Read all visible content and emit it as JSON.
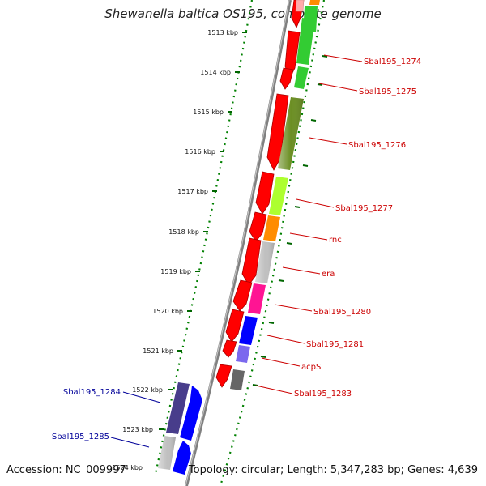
{
  "title": "Shewanella baltica OS195, complete genome",
  "accession": "Accession: NC_009997",
  "summary": "Topology: circular; Length: 5,347,283 bp; Genes: 4,639",
  "colors": {
    "label_right": "#cc0000",
    "label_left": "#000099",
    "tick_dots": "#008000",
    "backbone": "#808080"
  },
  "ticks": [
    "1513 kbp",
    "1514 kbp",
    "1515 kbp",
    "1516 kbp",
    "1517 kbp",
    "1518 kbp",
    "1519 kbp",
    "1520 kbp",
    "1521 kbp",
    "1522 kbp",
    "1523 kbp",
    "1524 kbp"
  ],
  "genes_right": [
    {
      "label": "Sbal195_1274",
      "color": "#33cc33"
    },
    {
      "label": "Sbal195_1275",
      "color": "#33cc33"
    },
    {
      "label": "Sbal195_1276",
      "color": "#6b8e23"
    },
    {
      "label": "Sbal195_1277",
      "color": "#adff2f"
    },
    {
      "label": "rnc",
      "color": "#ff8c00"
    },
    {
      "label": "era",
      "color": "#c0c0c0"
    },
    {
      "label": "Sbal195_1280",
      "color": "#ff1493"
    },
    {
      "label": "Sbal195_1281",
      "color": "#0000ff"
    },
    {
      "label": "acpS",
      "color": "#7b68ee"
    },
    {
      "label": "Sbal195_1283",
      "color": "#666666"
    }
  ],
  "genes_left": [
    {
      "label": "Sbal195_1284",
      "color": "#483d8b"
    },
    {
      "label": "Sbal195_1285",
      "color": "#c0c0c0"
    }
  ]
}
